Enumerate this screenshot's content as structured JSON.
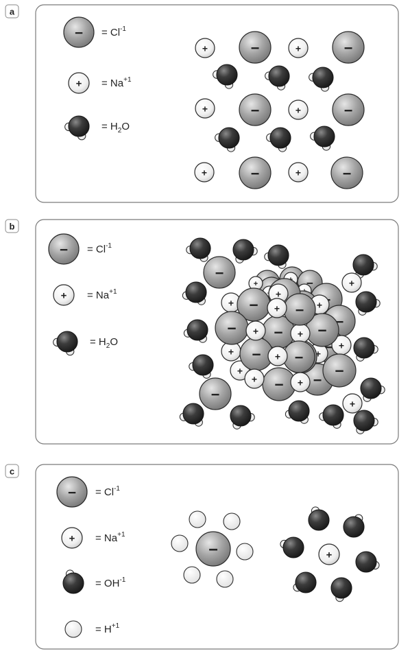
{
  "panels": [
    {
      "tag": "a",
      "legend": [
        {
          "kind": "chloride",
          "sign": "−",
          "text": "= Cl",
          "sup": "-1",
          "sub": ""
        },
        {
          "kind": "sodium",
          "sign": "+",
          "text": "= Na",
          "sup": "+1",
          "sub": ""
        },
        {
          "kind": "water",
          "sign": "",
          "text": "= H",
          "sup": "",
          "sub": "2",
          "after": "O"
        }
      ]
    },
    {
      "tag": "b",
      "legend": [
        {
          "kind": "chloride",
          "sign": "−",
          "text": "= Cl",
          "sup": "-1",
          "sub": ""
        },
        {
          "kind": "sodium",
          "sign": "+",
          "text": "= Na",
          "sup": "+1",
          "sub": ""
        },
        {
          "kind": "water",
          "sign": "",
          "text": "= H",
          "sup": "",
          "sub": "2",
          "after": "O"
        }
      ]
    },
    {
      "tag": "c",
      "legend": [
        {
          "kind": "chloride",
          "sign": "−",
          "text": "= Cl",
          "sup": "-1",
          "sub": ""
        },
        {
          "kind": "sodium",
          "sign": "+",
          "text": "= Na",
          "sup": "+1",
          "sub": ""
        },
        {
          "kind": "hydroxide",
          "sign": "",
          "text": "= OH",
          "sup": "-1",
          "sub": ""
        },
        {
          "kind": "hydrogen",
          "sign": "",
          "text": "= H",
          "sup": "+1",
          "sub": ""
        }
      ]
    }
  ],
  "signs": {
    "minus": "−",
    "plus": "+"
  },
  "colors": {
    "chloride": "#9c9c9c",
    "sodium": "#f2f2f2",
    "water": "#3a3a3a",
    "hydrogen": "#f6f6f6",
    "outline": "#2a2a2a",
    "frame": "#7a7a7a"
  }
}
